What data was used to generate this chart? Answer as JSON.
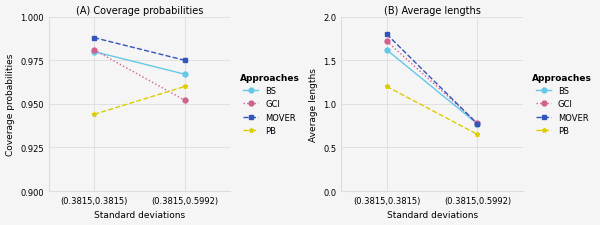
{
  "panel_A": {
    "title": "(A) Coverage probabilities",
    "ylabel": "Coverage probabilities",
    "xlabel": "Standard deviations",
    "xtick_labels": [
      "(0.3815,0.3815)",
      "(0.3815,0.5992)"
    ],
    "ylim": [
      0.9,
      1.0
    ],
    "yticks": [
      0.9,
      0.925,
      0.95,
      0.975,
      1.0
    ],
    "series": [
      {
        "name": "BS",
        "y": [
          0.98,
          0.967
        ],
        "color": "#64C8E8",
        "marker": "o",
        "linestyle": "-",
        "linewidth": 1.0
      },
      {
        "name": "GCI",
        "y": [
          0.981,
          0.952
        ],
        "color": "#D06090",
        "marker": "o",
        "linestyle": ":",
        "linewidth": 1.0
      },
      {
        "name": "MOVER",
        "y": [
          0.988,
          0.975
        ],
        "color": "#3355BB",
        "marker": "s",
        "linestyle": "--",
        "linewidth": 1.0
      },
      {
        "name": "PB",
        "y": [
          0.944,
          0.96
        ],
        "color": "#DDCC00",
        "marker": "*",
        "linestyle": "--",
        "linewidth": 1.0
      }
    ]
  },
  "panel_B": {
    "title": "(B) Average lengths",
    "ylabel": "Average lengths",
    "xlabel": "Standard deviations",
    "xtick_labels": [
      "(0.3815,0.3815)",
      "(0.3815,0.5992)"
    ],
    "ylim": [
      0.0,
      2.0
    ],
    "yticks": [
      0.0,
      0.5,
      1.0,
      1.5,
      2.0
    ],
    "series": [
      {
        "name": "BS",
        "y": [
          1.62,
          0.77
        ],
        "color": "#64C8E8",
        "marker": "o",
        "linestyle": "-",
        "linewidth": 1.0
      },
      {
        "name": "GCI",
        "y": [
          1.72,
          0.78
        ],
        "color": "#D06090",
        "marker": "o",
        "linestyle": ":",
        "linewidth": 1.0
      },
      {
        "name": "MOVER",
        "y": [
          1.8,
          0.77
        ],
        "color": "#3355BB",
        "marker": "s",
        "linestyle": "--",
        "linewidth": 1.0
      },
      {
        "name": "PB",
        "y": [
          1.2,
          0.65
        ],
        "color": "#DDCC00",
        "marker": "*",
        "linestyle": "--",
        "linewidth": 1.0
      }
    ]
  },
  "legend": {
    "title": "Approaches",
    "entries": [
      "BS",
      "GCI",
      "MOVER",
      "PB"
    ],
    "colors": [
      "#64C8E8",
      "#D06090",
      "#3355BB",
      "#DDCC00"
    ],
    "markers": [
      "o",
      "o",
      "s",
      "*"
    ],
    "linestyles": [
      "-",
      ":",
      "--",
      "--"
    ]
  },
  "bg_color": "#F5F5F5",
  "grid_color": "#DDDDDD",
  "font_size": 6.5
}
